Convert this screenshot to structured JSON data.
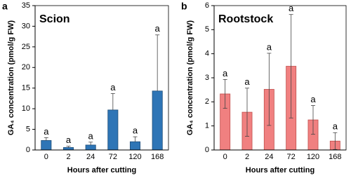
{
  "chart_data": [
    {
      "type": "bar",
      "panel_label": "a",
      "title": "Scion",
      "y_label": "GA₄ concentration (pmol/g FW)",
      "x_label": "Hours after cutting",
      "categories": [
        "0",
        "2",
        "24",
        "72",
        "120",
        "168"
      ],
      "values": [
        2.3,
        0.6,
        1.2,
        9.7,
        2.0,
        14.3
      ],
      "errors": [
        0.7,
        0.3,
        0.7,
        4.0,
        1.2,
        13.6
      ],
      "error_direction": "up",
      "letters": [
        "a",
        "a",
        "a",
        "a",
        "a",
        "a"
      ],
      "color": "#2e75b6",
      "edge_color": "#1f4e79",
      "ylim": [
        0,
        35
      ],
      "yticks": [
        0,
        5,
        10,
        15,
        20,
        25,
        30,
        35
      ]
    },
    {
      "type": "bar",
      "panel_label": "b",
      "title": "Rootstock",
      "y_label": "GA₄ concentration (pmol/g FW)",
      "x_label": "Hours after cutting",
      "categories": [
        "0",
        "2",
        "24",
        "72",
        "120",
        "168"
      ],
      "values": [
        2.33,
        1.57,
        2.52,
        3.48,
        1.25,
        0.37
      ],
      "errors": [
        0.6,
        1.0,
        1.5,
        2.15,
        0.6,
        0.35
      ],
      "error_direction": "both",
      "letters": [
        "a",
        "a",
        "a",
        "a",
        "a",
        "a"
      ],
      "color": "#f08080",
      "edge_color": "#c0504d",
      "ylim": [
        0,
        6
      ],
      "yticks": [
        0,
        1,
        2,
        3,
        4,
        5,
        6
      ]
    }
  ]
}
